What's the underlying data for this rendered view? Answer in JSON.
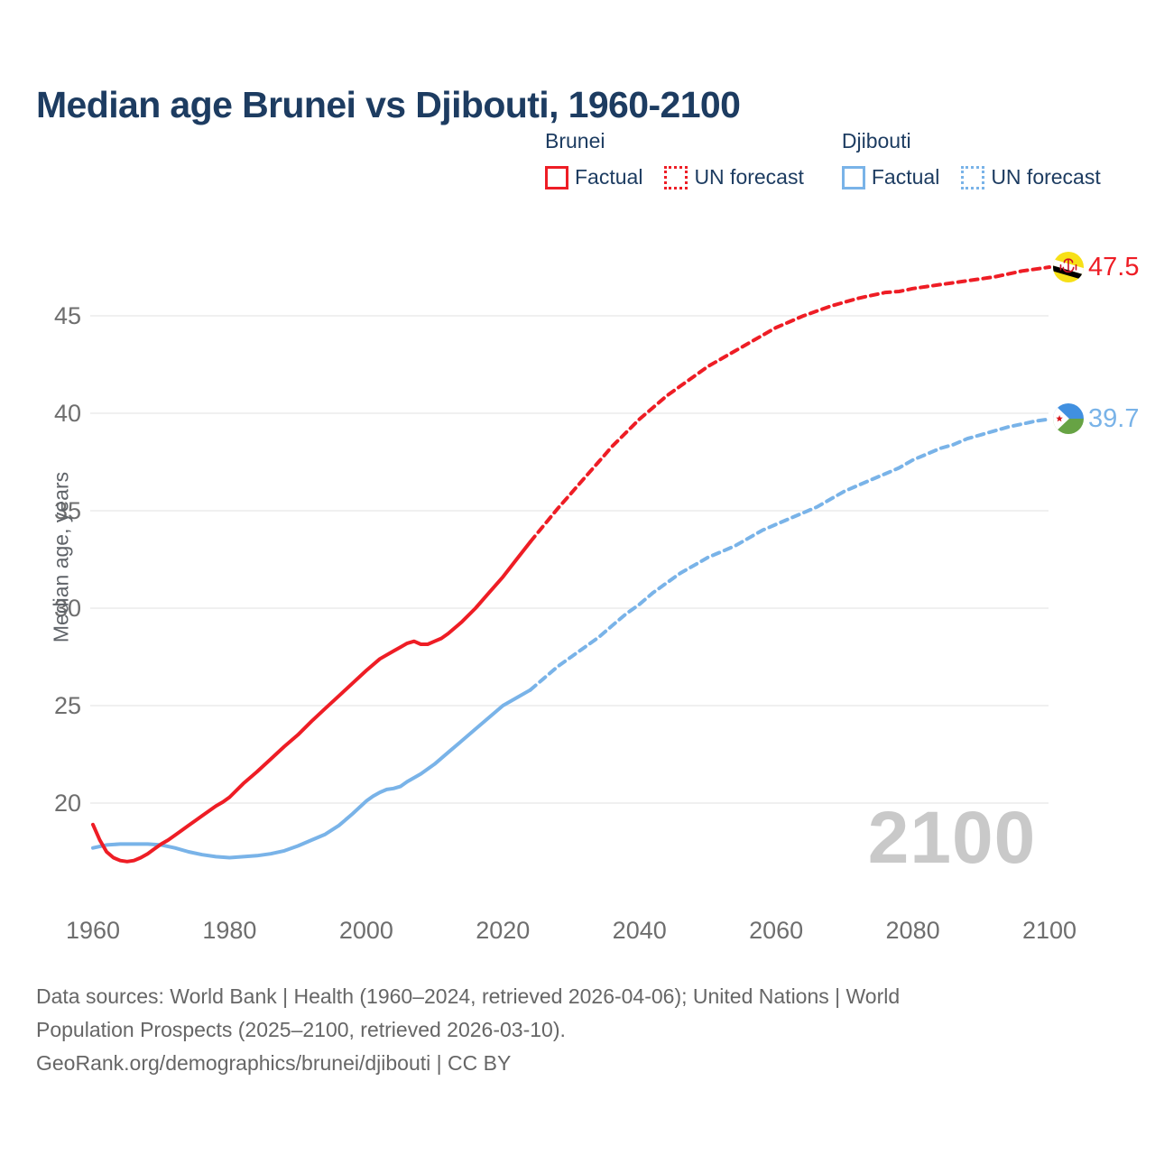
{
  "page": {
    "title": "Median age Brunei vs Djibouti, 1960-2100",
    "footer_lines": [
      "Data sources: World Bank | Health (1960–2024, retrieved 2026-04-06); United Nations | World",
      "Population Prospects (2025–2100, retrieved 2026-03-10).",
      "GeoRank.org/demographics/brunei/djibouti | CC BY"
    ]
  },
  "legend": {
    "groups": [
      {
        "title": "Brunei",
        "factual_label": "Factual",
        "forecast_label": "UN forecast"
      },
      {
        "title": "Djibouti",
        "factual_label": "Factual",
        "forecast_label": "UN forecast"
      }
    ]
  },
  "colors": {
    "brunei": "#ee1d25",
    "djibouti": "#79b3e8",
    "title": "#1d3c61",
    "axis": "#6e6e6e",
    "grid": "#ebebeb",
    "watermark": "#c9c9c9",
    "footer": "#666666"
  },
  "chart_data": {
    "type": "line",
    "title": "Median age Brunei vs Djibouti, 1960-2100",
    "xlabel": "",
    "ylabel": "Median age, years",
    "xticks": [
      1960,
      1980,
      2000,
      2020,
      2040,
      2060,
      2080,
      2100
    ],
    "yticks": [
      20,
      25,
      30,
      35,
      40,
      45
    ],
    "xlim": [
      1960,
      2100
    ],
    "ylim": [
      15.5,
      48.5
    ],
    "grid": "horizontal only",
    "legend_position": "top-right",
    "watermark": "2100",
    "end_labels": [
      {
        "country": "Brunei",
        "value": "47.5"
      },
      {
        "country": "Djibouti",
        "value": "39.7"
      }
    ],
    "series": [
      {
        "id": "djibouti-factual",
        "name": "Djibouti Factual",
        "color": "djibouti",
        "dash": "solid",
        "points": [
          [
            1960,
            17.7
          ],
          [
            1962,
            17.85
          ],
          [
            1964,
            17.9
          ],
          [
            1966,
            17.9
          ],
          [
            1968,
            17.9
          ],
          [
            1970,
            17.85
          ],
          [
            1972,
            17.7
          ],
          [
            1974,
            17.5
          ],
          [
            1976,
            17.35
          ],
          [
            1978,
            17.25
          ],
          [
            1980,
            17.2
          ],
          [
            1982,
            17.25
          ],
          [
            1984,
            17.3
          ],
          [
            1986,
            17.4
          ],
          [
            1988,
            17.55
          ],
          [
            1990,
            17.8
          ],
          [
            1992,
            18.1
          ],
          [
            1994,
            18.4
          ],
          [
            1996,
            18.85
          ],
          [
            1998,
            19.45
          ],
          [
            2000,
            20.1
          ],
          [
            2001,
            20.35
          ],
          [
            2002,
            20.55
          ],
          [
            2003,
            20.7
          ],
          [
            2004,
            20.75
          ],
          [
            2005,
            20.85
          ],
          [
            2006,
            21.1
          ],
          [
            2008,
            21.5
          ],
          [
            2010,
            22.0
          ],
          [
            2012,
            22.6
          ],
          [
            2014,
            23.2
          ],
          [
            2016,
            23.8
          ],
          [
            2018,
            24.4
          ],
          [
            2020,
            25.0
          ],
          [
            2022,
            25.4
          ],
          [
            2024,
            25.8
          ]
        ]
      },
      {
        "id": "djibouti-forecast",
        "name": "Djibouti UN forecast",
        "color": "djibouti",
        "dash": "dashed",
        "points": [
          [
            2024,
            25.8
          ],
          [
            2026,
            26.4
          ],
          [
            2028,
            27.0
          ],
          [
            2030,
            27.5
          ],
          [
            2032,
            28.0
          ],
          [
            2034,
            28.5
          ],
          [
            2036,
            29.1
          ],
          [
            2038,
            29.7
          ],
          [
            2040,
            30.2
          ],
          [
            2042,
            30.8
          ],
          [
            2044,
            31.3
          ],
          [
            2046,
            31.8
          ],
          [
            2048,
            32.2
          ],
          [
            2050,
            32.6
          ],
          [
            2052,
            32.9
          ],
          [
            2054,
            33.2
          ],
          [
            2056,
            33.6
          ],
          [
            2058,
            34.0
          ],
          [
            2060,
            34.3
          ],
          [
            2062,
            34.6
          ],
          [
            2064,
            34.9
          ],
          [
            2066,
            35.2
          ],
          [
            2068,
            35.6
          ],
          [
            2070,
            36.0
          ],
          [
            2072,
            36.3
          ],
          [
            2074,
            36.6
          ],
          [
            2076,
            36.9
          ],
          [
            2078,
            37.2
          ],
          [
            2080,
            37.6
          ],
          [
            2082,
            37.9
          ],
          [
            2084,
            38.2
          ],
          [
            2086,
            38.4
          ],
          [
            2088,
            38.7
          ],
          [
            2090,
            38.9
          ],
          [
            2092,
            39.1
          ],
          [
            2094,
            39.3
          ],
          [
            2096,
            39.45
          ],
          [
            2098,
            39.6
          ],
          [
            2100,
            39.7
          ]
        ]
      },
      {
        "id": "brunei-factual",
        "name": "Brunei Factual",
        "color": "brunei",
        "dash": "solid",
        "points": [
          [
            1960,
            18.9
          ],
          [
            1961,
            18.1
          ],
          [
            1962,
            17.5
          ],
          [
            1963,
            17.2
          ],
          [
            1964,
            17.05
          ],
          [
            1965,
            17.0
          ],
          [
            1966,
            17.05
          ],
          [
            1967,
            17.2
          ],
          [
            1968,
            17.4
          ],
          [
            1969,
            17.65
          ],
          [
            1970,
            17.9
          ],
          [
            1971,
            18.1
          ],
          [
            1972,
            18.35
          ],
          [
            1973,
            18.6
          ],
          [
            1974,
            18.85
          ],
          [
            1975,
            19.1
          ],
          [
            1976,
            19.35
          ],
          [
            1977,
            19.6
          ],
          [
            1978,
            19.85
          ],
          [
            1979,
            20.05
          ],
          [
            1980,
            20.3
          ],
          [
            1982,
            21.0
          ],
          [
            1984,
            21.6
          ],
          [
            1986,
            22.25
          ],
          [
            1988,
            22.9
          ],
          [
            1990,
            23.5
          ],
          [
            1992,
            24.2
          ],
          [
            1994,
            24.85
          ],
          [
            1996,
            25.5
          ],
          [
            1998,
            26.15
          ],
          [
            2000,
            26.8
          ],
          [
            2002,
            27.4
          ],
          [
            2004,
            27.8
          ],
          [
            2005,
            28.0
          ],
          [
            2006,
            28.2
          ],
          [
            2007,
            28.3
          ],
          [
            2008,
            28.15
          ],
          [
            2009,
            28.15
          ],
          [
            2010,
            28.3
          ],
          [
            2011,
            28.45
          ],
          [
            2012,
            28.7
          ],
          [
            2014,
            29.3
          ],
          [
            2016,
            30.0
          ],
          [
            2018,
            30.8
          ],
          [
            2020,
            31.6
          ],
          [
            2022,
            32.5
          ],
          [
            2024,
            33.4
          ]
        ]
      },
      {
        "id": "brunei-forecast",
        "name": "Brunei UN forecast",
        "color": "brunei",
        "dash": "dashed",
        "points": [
          [
            2024,
            33.4
          ],
          [
            2026,
            34.25
          ],
          [
            2028,
            35.1
          ],
          [
            2030,
            35.9
          ],
          [
            2032,
            36.7
          ],
          [
            2034,
            37.5
          ],
          [
            2036,
            38.3
          ],
          [
            2038,
            39.0
          ],
          [
            2040,
            39.7
          ],
          [
            2042,
            40.3
          ],
          [
            2044,
            40.9
          ],
          [
            2046,
            41.4
          ],
          [
            2048,
            41.9
          ],
          [
            2050,
            42.4
          ],
          [
            2052,
            42.8
          ],
          [
            2054,
            43.2
          ],
          [
            2056,
            43.6
          ],
          [
            2058,
            44.0
          ],
          [
            2060,
            44.4
          ],
          [
            2062,
            44.7
          ],
          [
            2064,
            45.0
          ],
          [
            2066,
            45.25
          ],
          [
            2068,
            45.5
          ],
          [
            2070,
            45.7
          ],
          [
            2072,
            45.9
          ],
          [
            2074,
            46.05
          ],
          [
            2076,
            46.2
          ],
          [
            2078,
            46.25
          ],
          [
            2080,
            46.4
          ],
          [
            2082,
            46.5
          ],
          [
            2084,
            46.6
          ],
          [
            2086,
            46.7
          ],
          [
            2088,
            46.8
          ],
          [
            2090,
            46.9
          ],
          [
            2092,
            47.0
          ],
          [
            2094,
            47.15
          ],
          [
            2096,
            47.3
          ],
          [
            2098,
            47.4
          ],
          [
            2100,
            47.5
          ]
        ]
      }
    ]
  }
}
